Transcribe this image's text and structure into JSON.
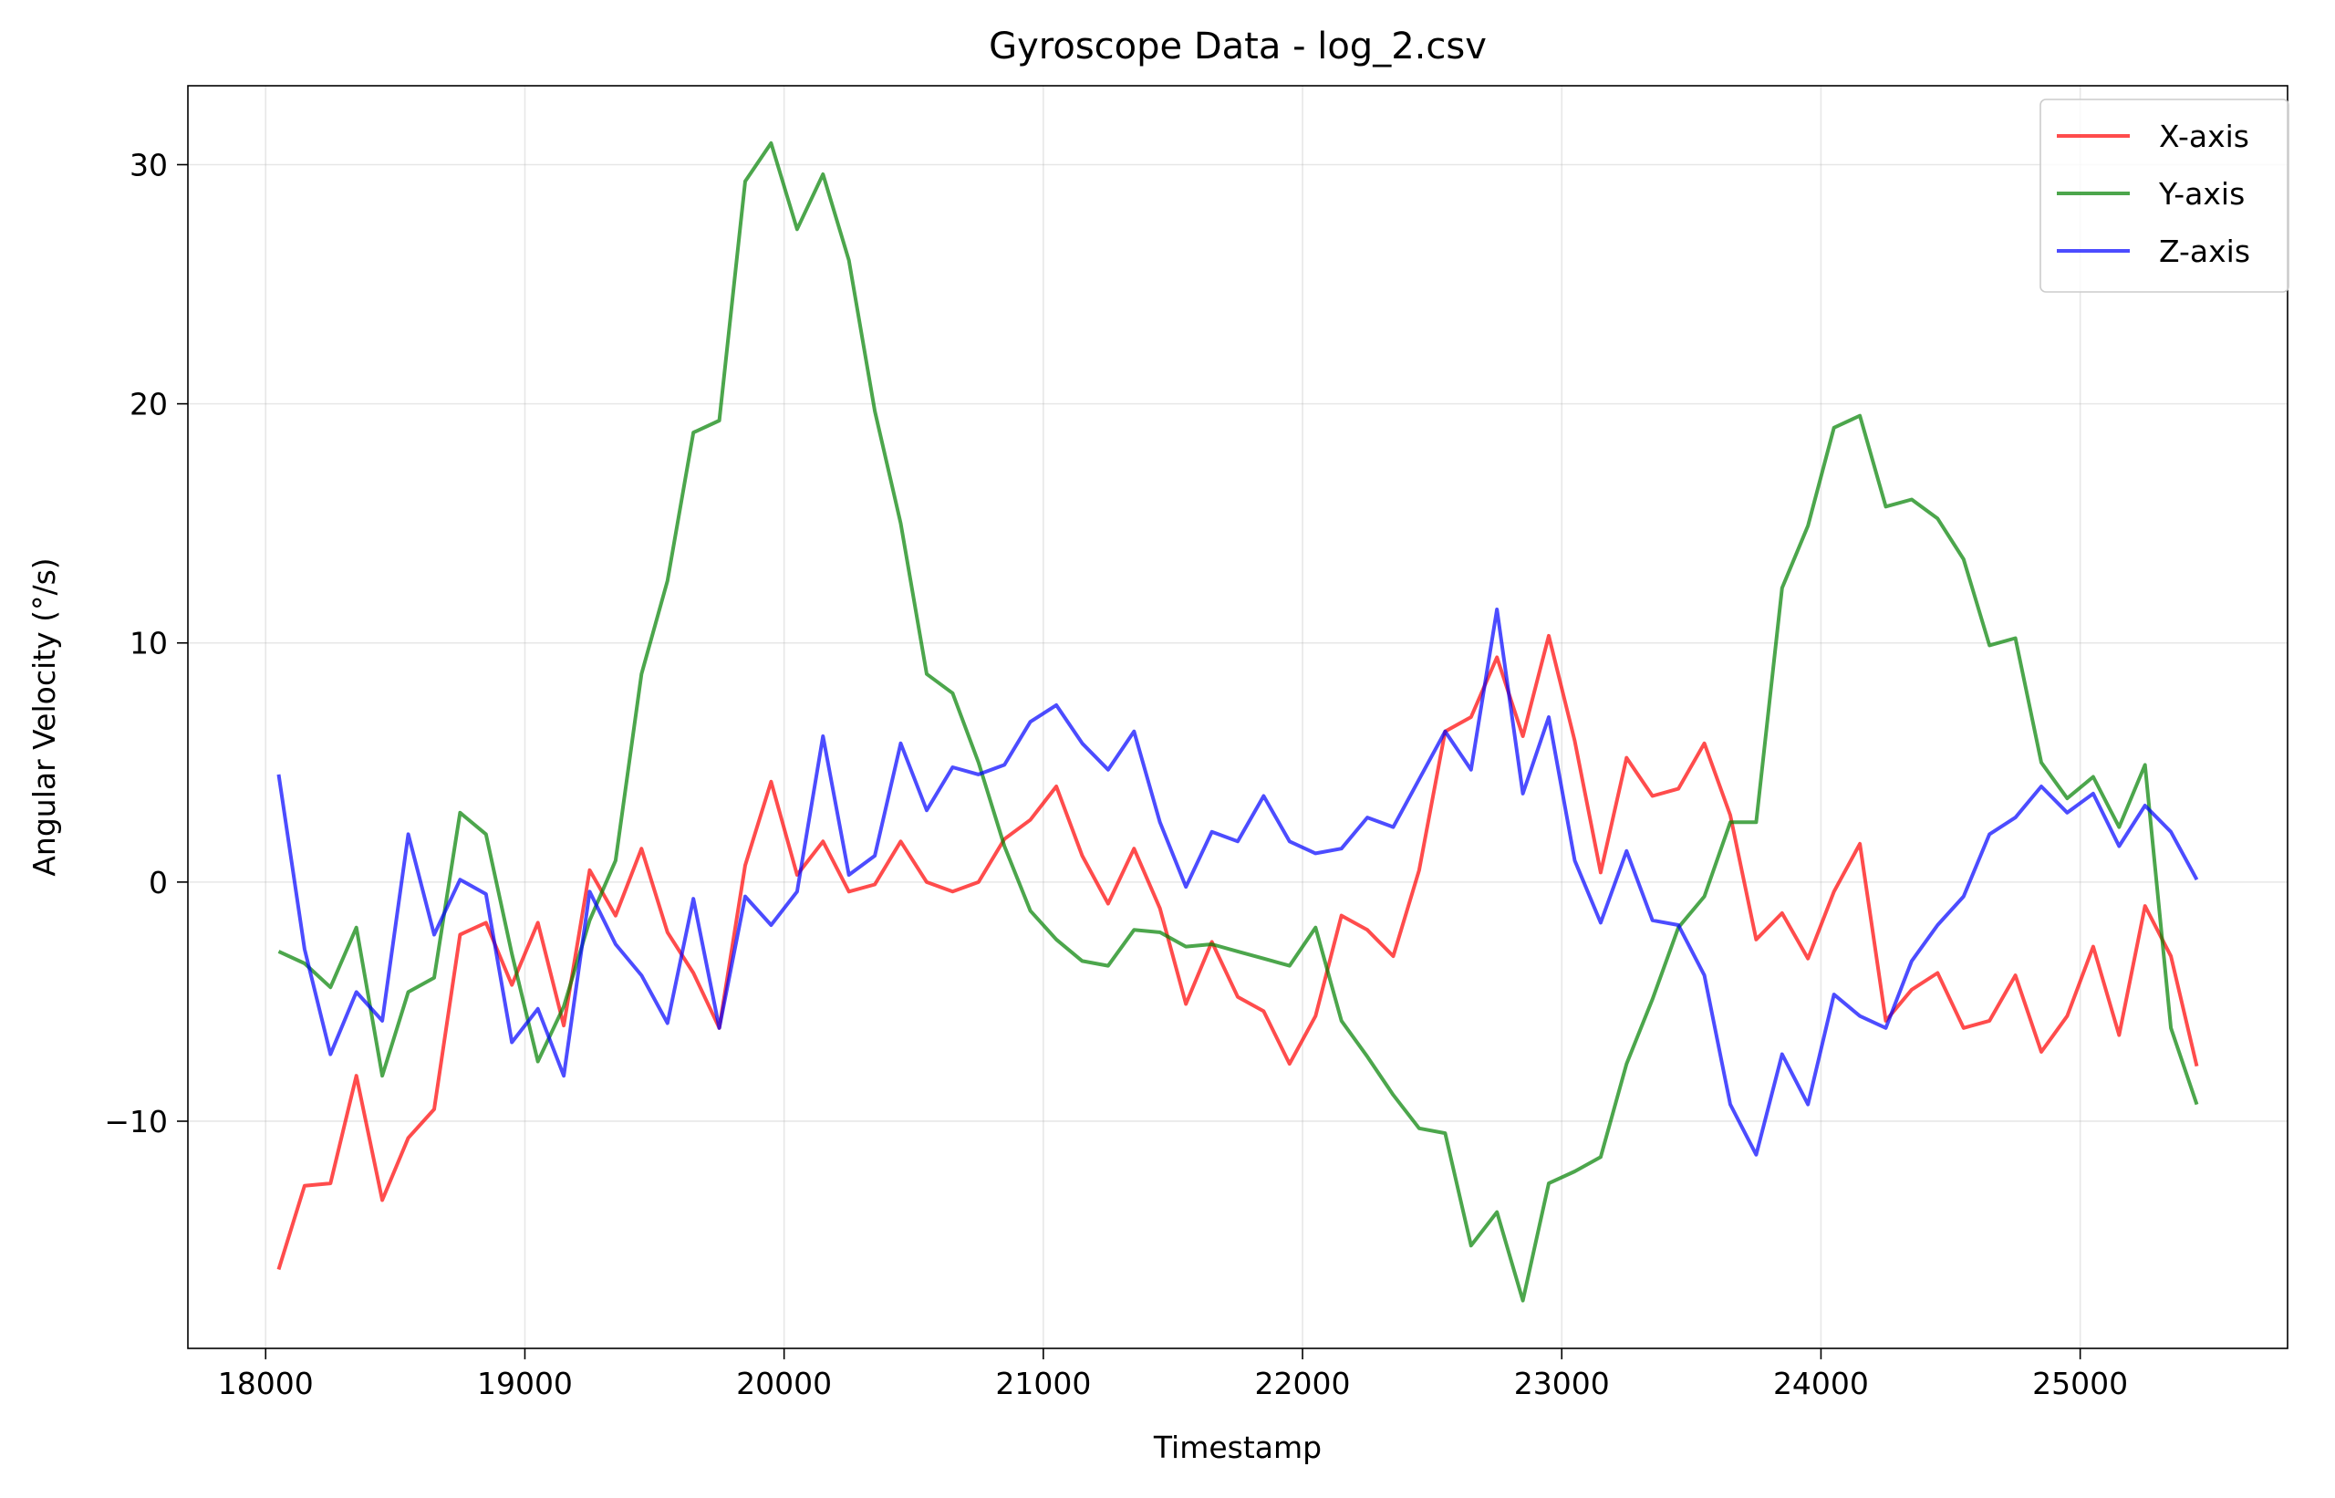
{
  "chart_data": {
    "type": "line",
    "title": "Gyroscope Data - log_2.csv",
    "xlabel": "Timestamp",
    "ylabel": "Angular Velocity (°/s)",
    "xlim": [
      17700,
      25800
    ],
    "ylim": [
      -19.5,
      33.3
    ],
    "xticks": [
      18000,
      19000,
      20000,
      21000,
      22000,
      23000,
      24000,
      25000
    ],
    "xtick_labels": [
      "18000",
      "19000",
      "20000",
      "21000",
      "22000",
      "23000",
      "24000",
      "25000"
    ],
    "yticks": [
      -10,
      0,
      10,
      20,
      30
    ],
    "ytick_labels": [
      "−10",
      "0",
      "10",
      "20",
      "30"
    ],
    "grid": true,
    "legend_position": "upper right",
    "x": [
      18050,
      18150,
      18250,
      18350,
      18450,
      18550,
      18650,
      18750,
      18850,
      18950,
      19050,
      19150,
      19250,
      19350,
      19450,
      19550,
      19650,
      19750,
      19850,
      19950,
      20050,
      20150,
      20250,
      20350,
      20450,
      20550,
      20650,
      20750,
      20850,
      20950,
      21050,
      21150,
      21250,
      21350,
      21450,
      21550,
      21650,
      21750,
      21850,
      21950,
      22050,
      22150,
      22250,
      22350,
      22450,
      22550,
      22650,
      22750,
      22850,
      22950,
      23050,
      23150,
      23250,
      23350,
      23450,
      23550,
      23650,
      23750,
      23850,
      23950,
      24050,
      24150,
      24250,
      24350,
      24450,
      24550,
      24650,
      24750,
      24850,
      24950,
      25050,
      25150,
      25250,
      25350,
      25450
    ],
    "series": [
      {
        "name": "X-axis",
        "color": "#ff0000",
        "values": [
          -16.2,
          -12.7,
          -12.6,
          -8.1,
          -13.3,
          -10.7,
          -9.5,
          -2.2,
          -1.7,
          -4.3,
          -1.7,
          -6.0,
          0.5,
          -1.4,
          1.4,
          -2.1,
          -3.8,
          -6.1,
          0.7,
          4.2,
          0.3,
          1.7,
          -0.4,
          -0.1,
          1.7,
          0.0,
          -0.4,
          0.0,
          1.8,
          2.6,
          4.0,
          1.1,
          -0.9,
          1.4,
          -1.1,
          -5.1,
          -2.5,
          -4.8,
          -5.4,
          -7.6,
          -5.6,
          -1.4,
          -2.0,
          -3.1,
          0.5,
          6.3,
          6.9,
          9.4,
          6.1,
          10.3,
          5.9,
          0.4,
          5.2,
          3.6,
          3.9,
          5.8,
          2.8,
          -2.4,
          -1.3,
          -3.2,
          -0.4,
          1.6,
          -5.8,
          -4.5,
          -3.8,
          -6.1,
          -5.8,
          -3.9,
          -7.1,
          -5.6,
          -2.7,
          -6.4,
          -1.0,
          -3.1,
          -7.7
        ]
      },
      {
        "name": "Y-axis",
        "color": "#008000",
        "values": [
          -2.9,
          -3.4,
          -4.4,
          -1.9,
          -8.1,
          -4.6,
          -4.0,
          2.9,
          2.0,
          -3.0,
          -7.5,
          -5.2,
          -1.6,
          0.9,
          8.7,
          12.6,
          18.8,
          19.3,
          29.3,
          30.9,
          27.3,
          29.6,
          26.0,
          19.7,
          15.0,
          8.7,
          7.9,
          5.0,
          1.5,
          -1.2,
          -2.4,
          -3.3,
          -3.5,
          -2.0,
          -2.1,
          -2.7,
          -2.6,
          -2.9,
          -3.2,
          -3.5,
          -1.9,
          -5.8,
          -7.3,
          -8.9,
          -10.3,
          -10.5,
          -15.2,
          -13.8,
          -17.5,
          -12.6,
          -12.1,
          -11.5,
          -7.6,
          -4.9,
          -1.9,
          -0.6,
          2.5,
          2.5,
          12.3,
          14.9,
          19.0,
          19.5,
          15.7,
          16.0,
          15.2,
          13.5,
          9.9,
          10.2,
          5.0,
          3.5,
          4.4,
          2.3,
          4.9,
          -6.1,
          -9.3
        ]
      },
      {
        "name": "Z-axis",
        "color": "#0000ff",
        "values": [
          4.5,
          -2.8,
          -7.2,
          -4.6,
          -5.8,
          2.0,
          -2.2,
          0.1,
          -0.5,
          -6.7,
          -5.3,
          -8.1,
          -0.4,
          -2.6,
          -3.9,
          -5.9,
          -0.7,
          -6.1,
          -0.6,
          -1.8,
          -0.4,
          6.1,
          0.3,
          1.1,
          5.8,
          3.0,
          4.8,
          4.5,
          4.9,
          6.7,
          7.4,
          5.8,
          4.7,
          6.3,
          2.5,
          -0.2,
          2.1,
          1.7,
          3.6,
          1.7,
          1.2,
          1.4,
          2.7,
          2.3,
          4.3,
          6.3,
          4.7,
          11.4,
          3.7,
          6.9,
          0.9,
          -1.7,
          1.3,
          -1.6,
          -1.8,
          -3.9,
          -9.3,
          -11.4,
          -7.2,
          -9.3,
          -4.7,
          -5.6,
          -6.1,
          -3.3,
          -1.8,
          -0.6,
          2.0,
          2.7,
          4.0,
          2.9,
          3.7,
          1.5,
          3.2,
          2.1,
          0.1
        ]
      }
    ]
  }
}
